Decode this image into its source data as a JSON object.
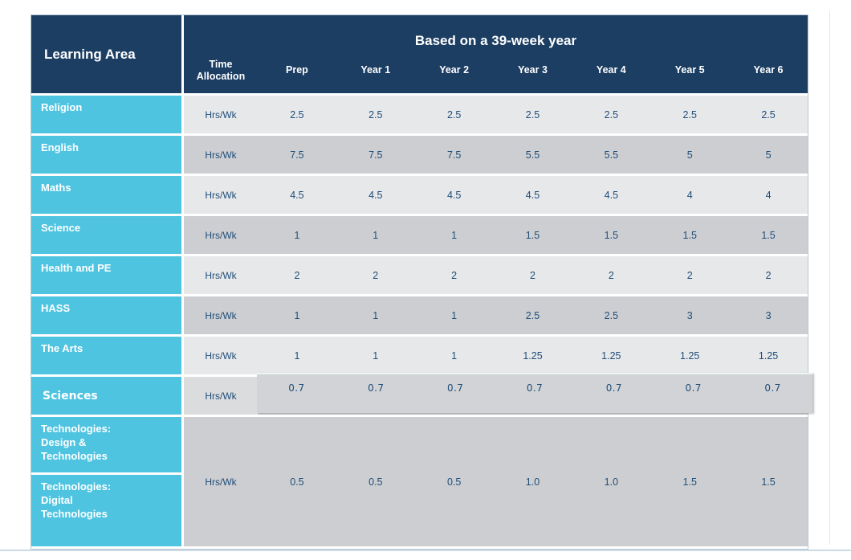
{
  "header": {
    "corner_label": "Learning Area",
    "banner": "Based on a 39-week year",
    "columns": [
      "Time Allocation",
      "Prep",
      "Year 1",
      "Year 2",
      "Year 3",
      "Year 4",
      "Year 5",
      "Year 6"
    ]
  },
  "rows": [
    {
      "label": "Religion",
      "unit": "Hrs/Wk",
      "values": [
        "2.5",
        "2.5",
        "2.5",
        "2.5",
        "2.5",
        "2.5",
        "2.5"
      ]
    },
    {
      "label": "English",
      "unit": "Hrs/Wk",
      "values": [
        "7.5",
        "7.5",
        "7.5",
        "5.5",
        "5.5",
        "5",
        "5"
      ]
    },
    {
      "label": "Maths",
      "unit": "Hrs/Wk",
      "values": [
        "4.5",
        "4.5",
        "4.5",
        "4.5",
        "4.5",
        "4",
        "4"
      ]
    },
    {
      "label": "Science",
      "unit": "Hrs/Wk",
      "values": [
        "1",
        "1",
        "1",
        "1.5",
        "1.5",
        "1.5",
        "1.5"
      ]
    },
    {
      "label": "Health and PE",
      "unit": "Hrs/Wk",
      "values": [
        "2",
        "2",
        "2",
        "2",
        "2",
        "2",
        "2"
      ]
    },
    {
      "label": "HASS",
      "unit": "Hrs/Wk",
      "values": [
        "1",
        "1",
        "1",
        "2.5",
        "2.5",
        "3",
        "3"
      ]
    },
    {
      "label": "The Arts",
      "unit": "Hrs/Wk",
      "values": [
        "1",
        "1",
        "1",
        "1.25",
        "1.25",
        "1.25",
        "1.25"
      ]
    }
  ],
  "sciences_row": {
    "label": "Sciences",
    "unit": "Hrs/Wk",
    "values": [
      "0.7",
      "0.7",
      "0.7",
      "0.7",
      "0.7",
      "0.7",
      "0.7"
    ]
  },
  "technologies": {
    "unit": "Hrs/Wk",
    "values": [
      "0.5",
      "0.5",
      "0.5",
      "1.0",
      "1.0",
      "1.5",
      "1.5"
    ],
    "rows": [
      {
        "lines": [
          "Technologies:",
          "Design &",
          "Technologies"
        ]
      },
      {
        "lines": [
          "Technologies:",
          "Digital",
          "Technologies"
        ]
      }
    ]
  },
  "colors": {
    "header_navy": "#1C3E63",
    "row_label_blue": "#4FC4E1",
    "row_light_gray": "#E7E8EA",
    "row_dark_gray": "#CDCED1",
    "overlay_gray": "#D2D3D6",
    "value_text": "#1F4E79"
  },
  "chart_data": {
    "type": "table",
    "title": "Based on a 39-week year",
    "columns": [
      "Learning Area",
      "Time Allocation",
      "Prep",
      "Year 1",
      "Year 2",
      "Year 3",
      "Year 4",
      "Year 5",
      "Year 6"
    ],
    "rows": [
      [
        "Religion",
        "Hrs/Wk",
        2.5,
        2.5,
        2.5,
        2.5,
        2.5,
        2.5,
        2.5
      ],
      [
        "English",
        "Hrs/Wk",
        7.5,
        7.5,
        7.5,
        5.5,
        5.5,
        5,
        5
      ],
      [
        "Maths",
        "Hrs/Wk",
        4.5,
        4.5,
        4.5,
        4.5,
        4.5,
        4,
        4
      ],
      [
        "Science",
        "Hrs/Wk",
        1,
        1,
        1,
        1.5,
        1.5,
        1.5,
        1.5
      ],
      [
        "Health and PE",
        "Hrs/Wk",
        2,
        2,
        2,
        2,
        2,
        2,
        2
      ],
      [
        "HASS",
        "Hrs/Wk",
        1,
        1,
        1,
        2.5,
        2.5,
        3,
        3
      ],
      [
        "The Arts",
        "Hrs/Wk",
        1,
        1,
        1,
        1.25,
        1.25,
        1.25,
        1.25
      ],
      [
        "Sciences",
        "Hrs/Wk",
        0.7,
        0.7,
        0.7,
        0.7,
        0.7,
        0.7,
        0.7
      ],
      [
        "Technologies: Design & Technologies / Technologies: Digital Technologies",
        "Hrs/Wk",
        0.5,
        0.5,
        0.5,
        1.0,
        1.0,
        1.5,
        1.5
      ]
    ]
  }
}
